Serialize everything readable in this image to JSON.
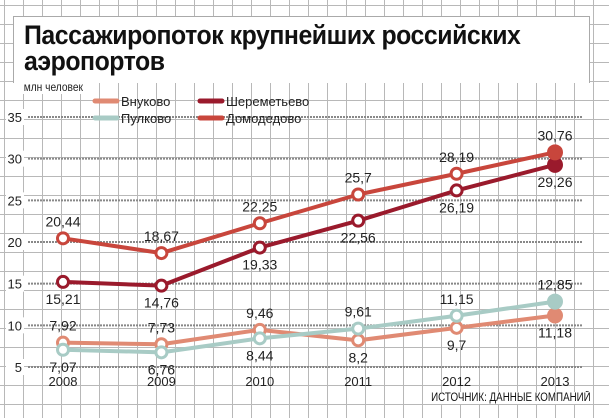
{
  "chart_data": {
    "type": "line",
    "title": "Пассажиропоток крупнейших российских аэропортов",
    "ylabel": "млн человек",
    "source": "ИСТОЧНИК: ДАННЫЕ КОМПАНИЙ",
    "x": [
      "2008",
      "2009",
      "2010",
      "2011",
      "2012",
      "2013"
    ],
    "yticks": [
      5,
      10,
      15,
      20,
      25,
      30,
      35
    ],
    "ylim": [
      5,
      35
    ],
    "grid": true,
    "legend_position": "top-left",
    "series": [
      {
        "name": "Внуково",
        "color": "#e08a73",
        "values": [
          7.92,
          7.73,
          9.46,
          8.2,
          9.7,
          11.18
        ],
        "labels": [
          "7,92",
          "7,73",
          "9,46",
          "8,2",
          "9,7",
          "11,18"
        ],
        "label_side": [
          "above",
          "above",
          "above",
          "below",
          "below",
          "below"
        ]
      },
      {
        "name": "Пулково",
        "color": "#a8cbc5",
        "values": [
          7.07,
          6.76,
          8.44,
          9.61,
          11.15,
          12.85
        ],
        "labels": [
          "7,07",
          "6,76",
          "8,44",
          "9,61",
          "11,15",
          "12,85"
        ],
        "label_side": [
          "below",
          "below",
          "below",
          "above",
          "above",
          "above"
        ]
      },
      {
        "name": "Шереметьево",
        "color": "#9a1a2c",
        "values": [
          15.21,
          14.76,
          19.33,
          22.56,
          26.19,
          29.26
        ],
        "labels": [
          "15,21",
          "14,76",
          "19,33",
          "22,56",
          "26,19",
          "29,26"
        ],
        "label_side": [
          "below",
          "below",
          "below",
          "below",
          "below",
          "below"
        ]
      },
      {
        "name": "Домодедово",
        "color": "#c8463c",
        "values": [
          20.44,
          18.67,
          22.25,
          25.7,
          28.19,
          30.76
        ],
        "labels": [
          "20,44",
          "18,67",
          "22,25",
          "25,7",
          "28,19",
          "30,76"
        ],
        "label_side": [
          "above",
          "above",
          "above",
          "above",
          "above",
          "above"
        ]
      }
    ]
  }
}
